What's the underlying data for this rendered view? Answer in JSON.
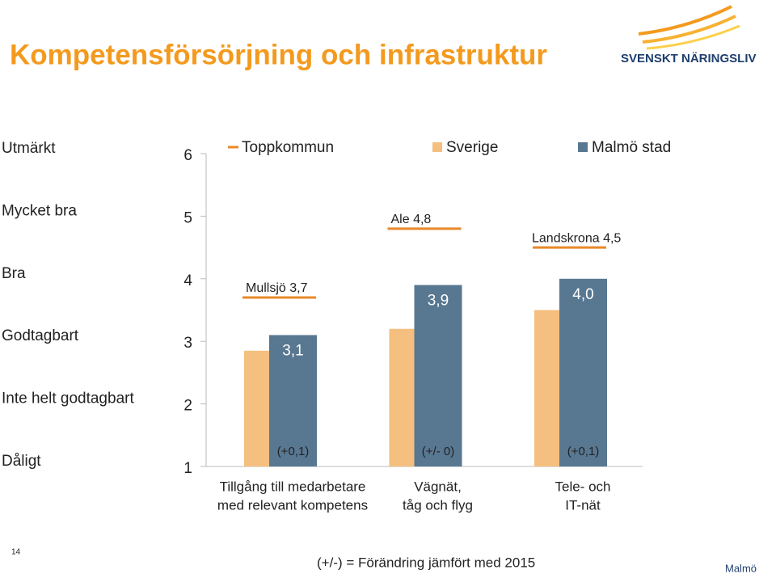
{
  "title": "Kompetensförsörjning och infrastruktur",
  "logo_text": "SVENSKT NÄRINGSLIV",
  "page_number": "14",
  "footnote": "(+/-) = Förändring jämfört med 2015",
  "footer_city": "Malmö",
  "chart_data": {
    "type": "bar",
    "categories": [
      [
        "Tillgång till medarbetare",
        "med relevant kompetens"
      ],
      [
        "Vägnät,",
        "tåg och flyg"
      ],
      [
        "Tele- och",
        "IT-nät"
      ]
    ],
    "series": [
      {
        "name": "Toppkommun",
        "color": "#e8892a",
        "style": "line",
        "values": [
          3.7,
          4.8,
          4.5
        ],
        "value_labels": [
          "Mullsjö 3,7",
          "Ale 4,8",
          "Landskrona 4,5"
        ]
      },
      {
        "name": "Sverige",
        "color": "#f5bf80",
        "values": [
          2.85,
          3.2,
          3.5
        ]
      },
      {
        "name": "Malmö stad",
        "color": "#587791",
        "values": [
          3.1,
          3.9,
          4.0
        ],
        "value_labels": [
          "3,1",
          "3,9",
          "4,0"
        ]
      }
    ],
    "changes": [
      "(+0,1)",
      "(+/- 0)",
      "(+0,1)"
    ],
    "ylim": [
      1,
      6
    ],
    "yticks": [
      1,
      2,
      3,
      4,
      5,
      6
    ],
    "rating_labels": [
      "Dåligt",
      "Inte helt godtagbart",
      "Godtagbart",
      "Bra",
      "Mycket bra",
      "Utmärkt"
    ]
  }
}
